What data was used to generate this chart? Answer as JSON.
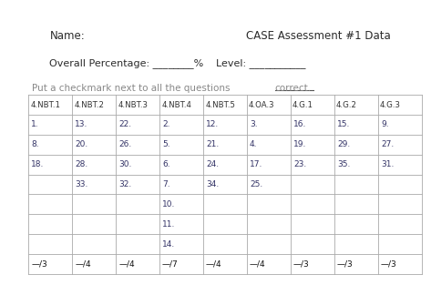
{
  "title_left": "Name:",
  "title_right": "CASE Assessment #1 Data",
  "subtitle_left": "Overall Percentage: ________%",
  "subtitle_middle": "Level: ___________",
  "instruction_main": "Put a checkmark next to all the questions ",
  "instruction_underline": "correct.",
  "headers": [
    "4.NBT.1",
    "4.NBT.2",
    "4.NBT.3",
    "4.NBT.4",
    "4.NBT.5",
    "4.OA.3",
    "4.G.1",
    "4.G.2",
    "4.G.3"
  ],
  "table_data": [
    [
      "1.",
      "13.",
      "22.",
      "2.",
      "12.",
      "3.",
      "16.",
      "15.",
      "9."
    ],
    [
      "8.",
      "20.",
      "26.",
      "5.",
      "21.",
      "4.",
      "19.",
      "29.",
      "27."
    ],
    [
      "18.",
      "28.",
      "30.",
      "6.",
      "24.",
      "17.",
      "23.",
      "35.",
      "31."
    ],
    [
      "",
      "33.",
      "32.",
      "7.",
      "34.",
      "25.",
      "",
      "",
      ""
    ],
    [
      "",
      "",
      "",
      "10.",
      "",
      "",
      "",
      "",
      ""
    ],
    [
      "",
      "",
      "",
      "11.",
      "",
      "",
      "",
      "",
      ""
    ],
    [
      "",
      "",
      "",
      "14.",
      "",
      "",
      "",
      "",
      ""
    ],
    [
      "—/3",
      "—/4",
      "—/4",
      "—/7",
      "—/4",
      "—/4",
      "—/3",
      "—/3",
      "—/3"
    ]
  ],
  "bg_color": "#ffffff",
  "title_color": "#2b2b2b",
  "subtitle_color": "#2b2b2b",
  "instruction_color": "#888888",
  "header_color": "#333333",
  "cell_color": "#333366",
  "footer_color": "#111111",
  "grid_color": "#aaaaaa",
  "underline_color": "#555555"
}
